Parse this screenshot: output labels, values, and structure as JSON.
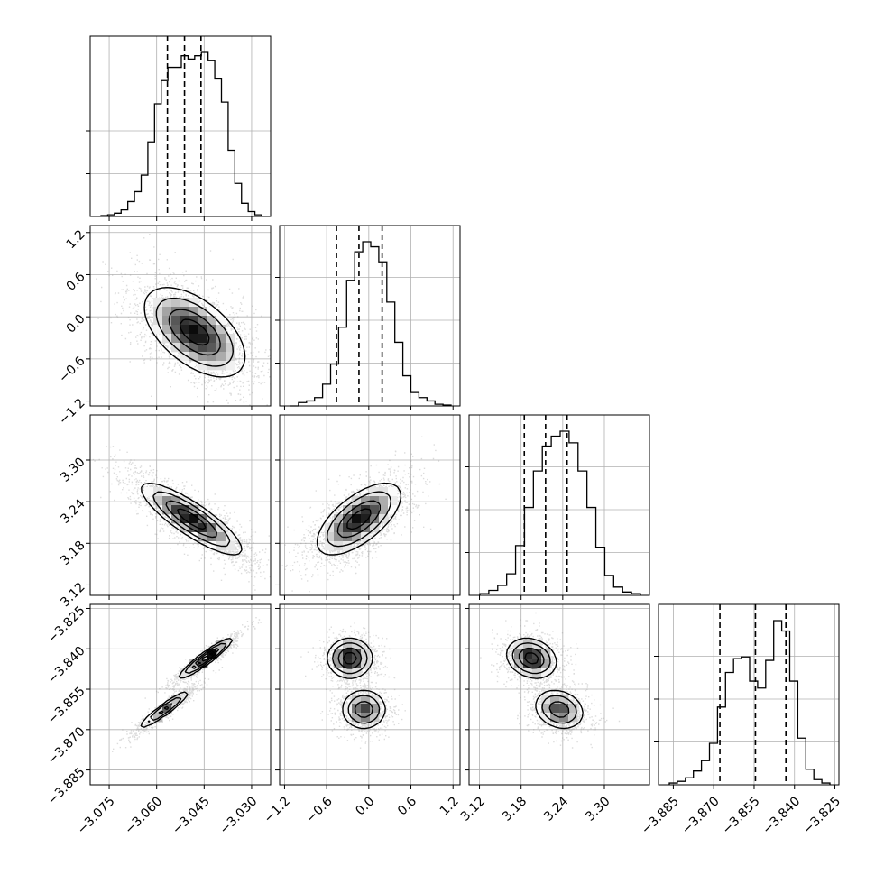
{
  "chart_data": {
    "type": "corner",
    "parameters": [
      {
        "ticks": [
          -3.075,
          -3.06,
          -3.045,
          -3.03
        ],
        "tick_labels": [
          "−3.075",
          "−3.060",
          "−3.045",
          "−3.030"
        ],
        "range": [
          -3.081,
          -3.024
        ],
        "hist_quantiles": [
          -3.0566,
          -3.0512,
          -3.046
        ],
        "hist_bins": [
          0.005,
          0.01,
          0.02,
          0.04,
          0.09,
          0.15,
          0.25,
          0.45,
          0.68,
          0.82,
          0.9,
          0.9,
          0.97,
          0.95,
          0.97,
          0.99,
          0.94,
          0.83,
          0.69,
          0.4,
          0.2,
          0.08,
          0.03,
          0.01
        ]
      },
      {
        "ticks": [
          -1.2,
          -0.6,
          0.0,
          0.6,
          1.2
        ],
        "tick_labels": [
          "−1.2",
          "−0.6",
          "0.0",
          "0.6",
          "1.2"
        ],
        "range": [
          -1.27,
          1.3
        ],
        "hist_quantiles": [
          -0.46,
          -0.14,
          0.19
        ],
        "hist_bins": [
          0.0,
          0.02,
          0.03,
          0.05,
          0.13,
          0.25,
          0.47,
          0.75,
          0.92,
          0.98,
          0.95,
          0.86,
          0.62,
          0.38,
          0.18,
          0.08,
          0.05,
          0.03,
          0.01,
          0.005
        ]
      },
      {
        "ticks": [
          3.12,
          3.18,
          3.24,
          3.3
        ],
        "tick_labels": [
          "3.12",
          "3.18",
          "3.24",
          "3.30"
        ],
        "range": [
          3.105,
          3.365
        ],
        "hist_quantiles": [
          3.1846,
          3.2153,
          3.2463
        ],
        "hist_bins": [
          0.01,
          0.03,
          0.06,
          0.13,
          0.3,
          0.53,
          0.75,
          0.9,
          0.96,
          0.99,
          0.92,
          0.75,
          0.53,
          0.29,
          0.12,
          0.05,
          0.02,
          0.01
        ]
      },
      {
        "ticks": [
          -3.885,
          -3.87,
          -3.855,
          -3.84,
          -3.825
        ],
        "tick_labels": [
          "−3.885",
          "−3.870",
          "−3.855",
          "−3.840",
          "−3.825"
        ],
        "range": [
          -3.8905,
          -3.8235
        ],
        "hist_quantiles": [
          -3.8677,
          -3.8545,
          -3.8432
        ],
        "hist_bins": [
          0.01,
          0.02,
          0.04,
          0.08,
          0.14,
          0.24,
          0.45,
          0.65,
          0.73,
          0.74,
          0.6,
          0.56,
          0.72,
          0.95,
          0.89,
          0.6,
          0.27,
          0.09,
          0.03,
          0.01
        ]
      }
    ],
    "pairs": [
      {
        "i": 1,
        "j": 0,
        "modes": [
          {
            "x": -3.048,
            "y": -0.22,
            "sx": 0.008,
            "sy": 0.32,
            "rho": -0.55,
            "w": 1
          }
        ]
      },
      {
        "i": 2,
        "j": 0,
        "modes": [
          {
            "x": -3.049,
            "y": 3.215,
            "sx": 0.008,
            "sy": 0.026,
            "rho": -0.85,
            "w": 1
          }
        ]
      },
      {
        "i": 2,
        "j": 1,
        "modes": [
          {
            "x": -0.14,
            "y": 3.215,
            "sx": 0.3,
            "sy": 0.026,
            "rho": 0.65,
            "w": 1
          }
        ]
      },
      {
        "i": 3,
        "j": 0,
        "modes": [
          {
            "x": -3.0445,
            "y": -3.8435,
            "sx": 0.0042,
            "sy": 0.0037,
            "rho": 0.94,
            "w": 0.6
          },
          {
            "x": -3.0575,
            "y": -3.8625,
            "sx": 0.0042,
            "sy": 0.0037,
            "rho": 0.94,
            "w": 0.4
          }
        ]
      },
      {
        "i": 3,
        "j": 1,
        "modes": [
          {
            "x": -0.27,
            "y": -3.8435,
            "sx": 0.16,
            "sy": 0.0037,
            "rho": 0.0,
            "w": 0.55
          },
          {
            "x": -0.07,
            "y": -3.8625,
            "sx": 0.16,
            "sy": 0.0037,
            "rho": 0.0,
            "w": 0.45
          }
        ]
      },
      {
        "i": 3,
        "j": 2,
        "modes": [
          {
            "x": 3.195,
            "y": -3.8435,
            "sx": 0.018,
            "sy": 0.0037,
            "rho": -0.2,
            "w": 0.55
          },
          {
            "x": 3.235,
            "y": -3.8625,
            "sx": 0.018,
            "sy": 0.0037,
            "rho": -0.2,
            "w": 0.45
          }
        ]
      }
    ]
  }
}
